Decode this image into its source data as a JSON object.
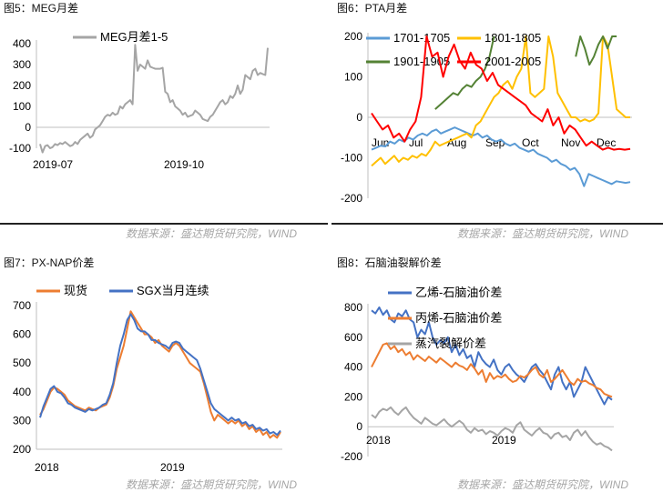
{
  "figures": [
    {
      "id": "fig5",
      "title": "图5：MEG月差",
      "source": "数据来源：盛达期货研究院，WIND"
    },
    {
      "id": "fig6",
      "title": "图6：PTA月差",
      "source": "数据来源：盛达期货研究院，WIND"
    },
    {
      "id": "fig7",
      "title": "图7：PX-NAP价差",
      "source": "数据来源：盛达期货研究院，WIND"
    },
    {
      "id": "fig8",
      "title": "图8：石脑油裂解价差",
      "source": "数据来源：盛达期货研究院，WIND"
    }
  ],
  "colors": {
    "gray": "#a5a5a5",
    "blue": "#5b9bd5",
    "orange": "#ed7d31",
    "yellow": "#ffc000",
    "green": "#548235",
    "red": "#ff0000",
    "darkblue": "#4472c4"
  },
  "chart_data": [
    {
      "type": "line",
      "ylim": [
        -100,
        400
      ],
      "yticks": [
        "400",
        "300",
        "200",
        "100",
        "0",
        "-100"
      ],
      "x_labels": [
        "2019-07",
        "2019-10"
      ],
      "series": [
        {
          "name": "MEG月差1-5",
          "color": "gray",
          "values": [
            -80,
            -120,
            -90,
            -85,
            -100,
            -95,
            -80,
            -85,
            -75,
            -80,
            -70,
            -80,
            -90,
            -85,
            -70,
            -80,
            -60,
            -50,
            -40,
            -30,
            -50,
            -40,
            -10,
            0,
            10,
            30,
            50,
            60,
            55,
            70,
            60,
            65,
            100,
            90,
            110,
            120,
            130,
            110,
            395,
            270,
            300,
            290,
            280,
            320,
            290,
            285,
            280,
            280,
            280,
            285,
            170,
            160,
            120,
            130,
            100,
            90,
            80,
            60,
            70,
            50,
            55,
            60,
            80,
            70,
            60,
            40,
            35,
            30,
            50,
            60,
            80,
            100,
            120,
            130,
            110,
            120,
            150,
            140,
            160,
            200,
            160,
            180,
            250,
            240,
            230,
            270,
            280,
            250,
            260,
            255,
            250,
            380
          ]
        }
      ]
    },
    {
      "type": "line",
      "ylim": [
        -200,
        200
      ],
      "yticks": [
        "200",
        "100",
        "0",
        "-100",
        "-200"
      ],
      "x_labels": [
        "Jun",
        "Jul",
        "Aug",
        "Sep",
        "Oct",
        "Nov",
        "Dec"
      ],
      "series": [
        {
          "name": "1701-1705",
          "color": "blue",
          "values": [
            -80,
            -75,
            -70,
            -72,
            -60,
            -65,
            -55,
            -60,
            -50,
            -55,
            -45,
            -40,
            -45,
            -35,
            -30,
            -40,
            -35,
            -30,
            -25,
            -30,
            -35,
            -40,
            -45,
            -40,
            -50,
            -45,
            -55,
            -60,
            -55,
            -65,
            -70,
            -65,
            -75,
            -80,
            -85,
            -80,
            -90,
            -95,
            -100,
            -110,
            -105,
            -115,
            -120,
            -130,
            -125,
            -140,
            -170,
            -140,
            -145,
            -150,
            -155,
            -160,
            -165,
            -158,
            -160,
            -162,
            -160
          ]
        },
        {
          "name": "1801-1805",
          "color": "yellow",
          "values": [
            -120,
            -110,
            -100,
            -115,
            -105,
            -95,
            -110,
            -100,
            -105,
            -95,
            -100,
            -90,
            -95,
            -80,
            -60,
            -70,
            -65,
            -60,
            -55,
            -50,
            -45,
            -40,
            -50,
            -20,
            -10,
            10,
            30,
            50,
            60,
            80,
            90,
            70,
            100,
            120,
            200,
            60,
            50,
            60,
            70,
            200,
            150,
            60,
            40,
            20,
            0,
            0,
            -10,
            -5,
            -10,
            -5,
            10,
            200,
            180,
            100,
            20,
            10,
            0,
            0
          ]
        },
        {
          "name": "1901-1905",
          "color": "green",
          "values": [
            null,
            null,
            null,
            null,
            null,
            null,
            null,
            null,
            null,
            null,
            null,
            null,
            null,
            null,
            20,
            30,
            40,
            50,
            60,
            55,
            70,
            80,
            75,
            90,
            100,
            120,
            150,
            200,
            null,
            null,
            null,
            null,
            null,
            null,
            null,
            null,
            null,
            null,
            null,
            null,
            null,
            null,
            null,
            null,
            null,
            150,
            200,
            170,
            130,
            150,
            180,
            200,
            170,
            200,
            200,
            null,
            null,
            null
          ]
        },
        {
          "name": "2001-2005",
          "color": "red",
          "values": [
            10,
            -10,
            -30,
            -20,
            -50,
            -40,
            -60,
            -30,
            -10,
            50,
            200,
            150,
            160,
            100,
            150,
            180,
            140,
            120,
            160,
            130,
            120,
            90,
            110,
            80,
            70,
            60,
            50,
            40,
            30,
            10,
            0,
            -10,
            20,
            -20,
            0,
            -40,
            -20,
            -30,
            -50,
            -70,
            -60,
            -70,
            -80,
            -75,
            -80,
            -78,
            -80,
            -78
          ]
        }
      ]
    },
    {
      "type": "line",
      "ylim": [
        200,
        700
      ],
      "yticks": [
        "700",
        "600",
        "500",
        "400",
        "300",
        "200"
      ],
      "x_labels": [
        "2018",
        "2019"
      ],
      "series": [
        {
          "name": "现货",
          "color": "orange",
          "values": [
            320,
            340,
            370,
            400,
            415,
            410,
            400,
            390,
            370,
            360,
            350,
            345,
            340,
            335,
            345,
            340,
            335,
            345,
            350,
            355,
            380,
            420,
            480,
            520,
            560,
            620,
            680,
            660,
            640,
            620,
            600,
            600,
            590,
            570,
            580,
            560,
            550,
            540,
            560,
            570,
            560,
            540,
            520,
            500,
            490,
            480,
            470,
            430,
            380,
            330,
            300,
            320,
            310,
            300,
            290,
            300,
            290,
            300,
            280,
            290,
            270,
            280,
            260,
            270,
            250,
            260,
            240,
            250,
            240,
            260
          ]
        },
        {
          "name": "SGX当月连续",
          "color": "darkblue",
          "values": [
            310,
            350,
            380,
            410,
            420,
            400,
            395,
            380,
            360,
            355,
            345,
            340,
            335,
            330,
            340,
            335,
            340,
            345,
            355,
            360,
            390,
            430,
            500,
            560,
            600,
            650,
            670,
            650,
            620,
            610,
            610,
            600,
            580,
            580,
            570,
            565,
            560,
            550,
            570,
            575,
            570,
            550,
            540,
            530,
            520,
            510,
            480,
            440,
            400,
            360,
            340,
            330,
            320,
            310,
            300,
            310,
            300,
            305,
            290,
            295,
            280,
            285,
            270,
            275,
            265,
            270,
            255,
            260,
            250,
            265
          ]
        }
      ]
    },
    {
      "type": "line",
      "ylim": [
        -200,
        800
      ],
      "yticks": [
        "800",
        "600",
        "400",
        "200",
        "0",
        "-200"
      ],
      "x_labels": [
        "2018",
        "2019"
      ],
      "series": [
        {
          "name": "乙烯-石脑油价差",
          "color": "darkblue",
          "values": [
            780,
            760,
            800,
            750,
            780,
            720,
            700,
            760,
            740,
            780,
            720,
            700,
            600,
            650,
            620,
            700,
            600,
            550,
            580,
            560,
            600,
            500,
            550,
            480,
            520,
            460,
            480,
            400,
            500,
            450,
            420,
            400,
            450,
            380,
            350,
            400,
            420,
            380,
            350,
            330,
            300,
            350,
            400,
            420,
            380,
            350,
            300,
            250,
            350,
            400,
            300,
            250,
            300,
            200,
            250,
            300,
            400,
            350,
            300,
            250,
            200,
            150,
            200,
            180
          ]
        },
        {
          "name": "丙烯-石脑油价差",
          "color": "orange",
          "values": [
            400,
            450,
            500,
            550,
            560,
            520,
            540,
            500,
            520,
            480,
            500,
            450,
            480,
            460,
            440,
            470,
            450,
            430,
            460,
            440,
            420,
            400,
            430,
            410,
            400,
            380,
            420,
            390,
            350,
            380,
            300,
            360,
            320,
            340,
            330,
            350,
            320,
            300,
            310,
            340,
            330,
            350,
            380,
            400,
            350,
            330,
            380,
            300,
            320,
            350,
            380,
            340,
            300,
            280,
            320,
            300,
            310,
            290,
            280,
            260,
            250,
            220,
            210,
            200
          ]
        },
        {
          "name": "蒸汽裂解价差",
          "color": "gray",
          "values": [
            80,
            60,
            100,
            120,
            110,
            130,
            100,
            80,
            110,
            130,
            90,
            60,
            40,
            20,
            60,
            40,
            20,
            10,
            30,
            50,
            20,
            0,
            20,
            40,
            20,
            -20,
            -40,
            -10,
            -30,
            -20,
            -50,
            -30,
            -40,
            -60,
            -30,
            -10,
            -20,
            -40,
            10,
            30,
            -20,
            -40,
            -60,
            -30,
            -10,
            -40,
            -50,
            -80,
            -50,
            -40,
            -70,
            -60,
            -90,
            -40,
            -20,
            -60,
            -30,
            -70,
            -100,
            -120,
            -110,
            -130,
            -140,
            -160
          ]
        }
      ]
    }
  ]
}
